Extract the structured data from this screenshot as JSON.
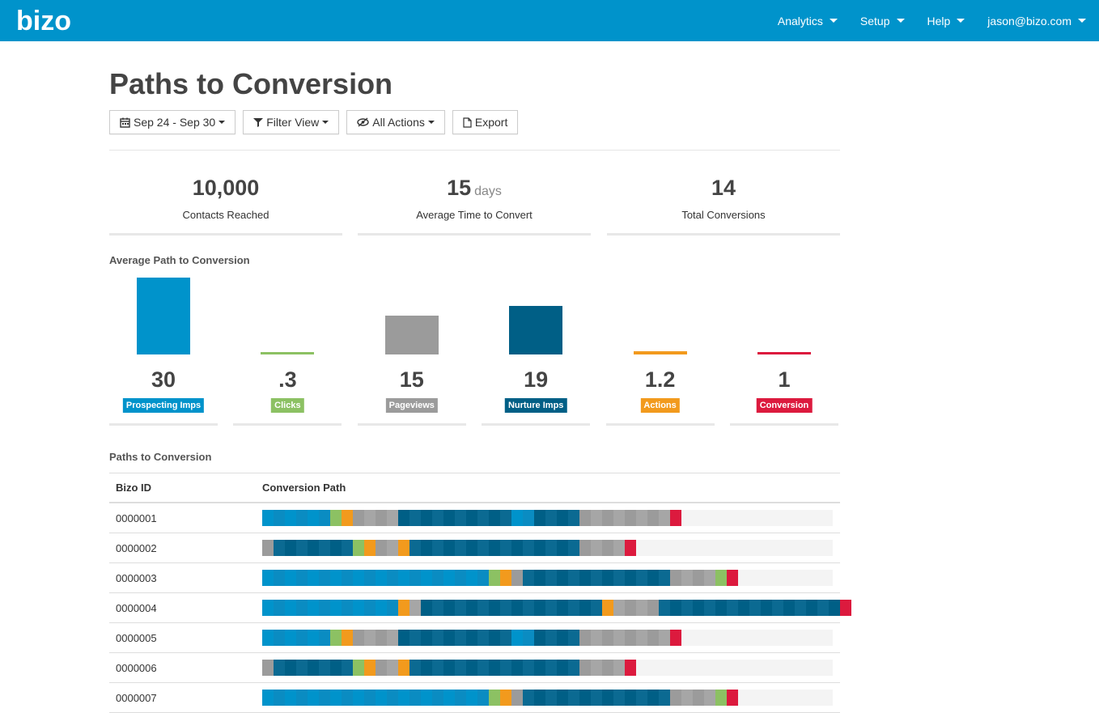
{
  "app": {
    "logo_text": "bizo"
  },
  "nav": {
    "items": [
      {
        "label": "Analytics"
      },
      {
        "label": "Setup"
      },
      {
        "label": "Help"
      },
      {
        "label": "jason@bizo.com"
      }
    ]
  },
  "page": {
    "title": "Paths to Conversion"
  },
  "toolbar": {
    "date_range": "Sep 24 - Sep 30",
    "filter_view": "Filter View",
    "all_actions": "All Actions",
    "export": "Export"
  },
  "stats": [
    {
      "value": "10,000",
      "unit": "",
      "label": "Contacts Reached"
    },
    {
      "value": "15",
      "unit": "days",
      "label": "Average Time to Convert"
    },
    {
      "value": "14",
      "unit": "",
      "label": "Total Conversions"
    }
  ],
  "average_path": {
    "title": "Average Path to Conversion",
    "max_value": 30,
    "items": [
      {
        "value": 30,
        "display": "30",
        "label": "Prospecting Imps",
        "color": "#0093cb"
      },
      {
        "value": 0.3,
        "display": ".3",
        "label": "Clicks",
        "color": "#8cc163"
      },
      {
        "value": 15,
        "display": "15",
        "label": "Pageviews",
        "color": "#9b9b9b"
      },
      {
        "value": 19,
        "display": "19",
        "label": "Nurture Imps",
        "color": "#005f86"
      },
      {
        "value": 1.2,
        "display": "1.2",
        "label": "Actions",
        "color": "#f29a1d"
      },
      {
        "value": 1,
        "display": "1",
        "label": "Conversion",
        "color": "#dc1a3e"
      }
    ]
  },
  "paths": {
    "title": "Paths to Conversion",
    "columns": {
      "id": "Bizo ID",
      "path": "Conversion Path"
    },
    "colors": {
      "prospecting": "#0093cb",
      "prospecting_alt": "#0a8cc2",
      "click": "#8cc163",
      "pageview": "#9b9b9b",
      "pageview_alt": "#a6a6a6",
      "nurture": "#005f86",
      "nurture_alt": "#0b6a92",
      "action": "#f29a1d",
      "conversion": "#dc1a3e"
    },
    "rows": [
      {
        "id": "0000001",
        "path": "PPPPPPCAVVVVNNNNNNNNNNPPNNNNVVVVVVVVX"
      },
      {
        "id": "0000002",
        "path": "VNNNNNNNCAVVANNNNNNNNNNNNNNNVVVVX"
      },
      {
        "id": "0000003",
        "path": "PPPPPPPPPPPPPPPPPPPPCAVNNNNNNNNNNNNNVVVVCX"
      },
      {
        "id": "0000004",
        "path": "PPPPPPPPPPPPAVNNNNNNNNNNNNNNNNAVVVVNNNNNNNNNNNNNNNNX"
      },
      {
        "id": "0000005",
        "path": "PPPPPPCAVVVVNNNNNNNNNNPPNNNNVVVVVVVVX"
      },
      {
        "id": "0000006",
        "path": "VNNNNNNNCAVVANNNNNNNNNNNNNNNVVVVX"
      },
      {
        "id": "0000007",
        "path": "PPPPPPPPPPPPPPPPPPPPCAVNNNNNNNNNNNNNVVVVCX"
      }
    ]
  }
}
